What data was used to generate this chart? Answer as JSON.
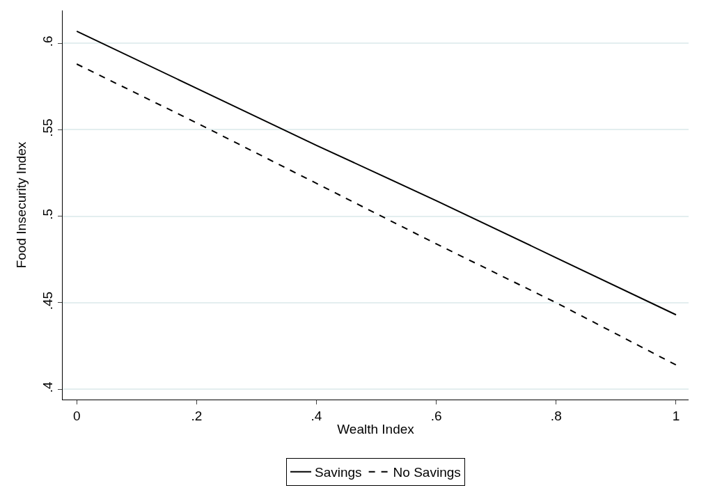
{
  "chart_data": {
    "type": "line",
    "xlabel": "Wealth Index",
    "ylabel": "Food Insecurity Index",
    "x": [
      0,
      0.2,
      0.4,
      0.6,
      0.8,
      1
    ],
    "series": [
      {
        "name": "Savings",
        "color": "#000000",
        "line_style": "solid",
        "values": [
          0.607,
          0.574,
          0.541,
          0.509,
          0.476,
          0.443
        ]
      },
      {
        "name": "No Savings",
        "color": "#000000",
        "line_style": "dashed",
        "values": [
          0.588,
          0.554,
          0.519,
          0.484,
          0.45,
          0.414
        ]
      }
    ],
    "xlim": [
      -0.0235,
      1.021
    ],
    "ylim": [
      0.394,
      0.619
    ],
    "xticks": [
      0,
      {
        "value": 0.2,
        "label": ".2"
      },
      {
        "value": 0.4,
        "label": ".4"
      },
      {
        "value": 0.6,
        "label": ".6"
      },
      {
        "value": 0.8,
        "label": ".8"
      },
      1
    ],
    "yticks": [
      {
        "value": 0.4,
        "label": ".4"
      },
      {
        "value": 0.45,
        "label": ".45"
      },
      {
        "value": 0.5,
        "label": ".5"
      },
      {
        "value": 0.55,
        "label": ".55"
      },
      {
        "value": 0.6,
        "label": ".6"
      }
    ],
    "grid": "y",
    "legend": "bottom",
    "marker": "none"
  }
}
